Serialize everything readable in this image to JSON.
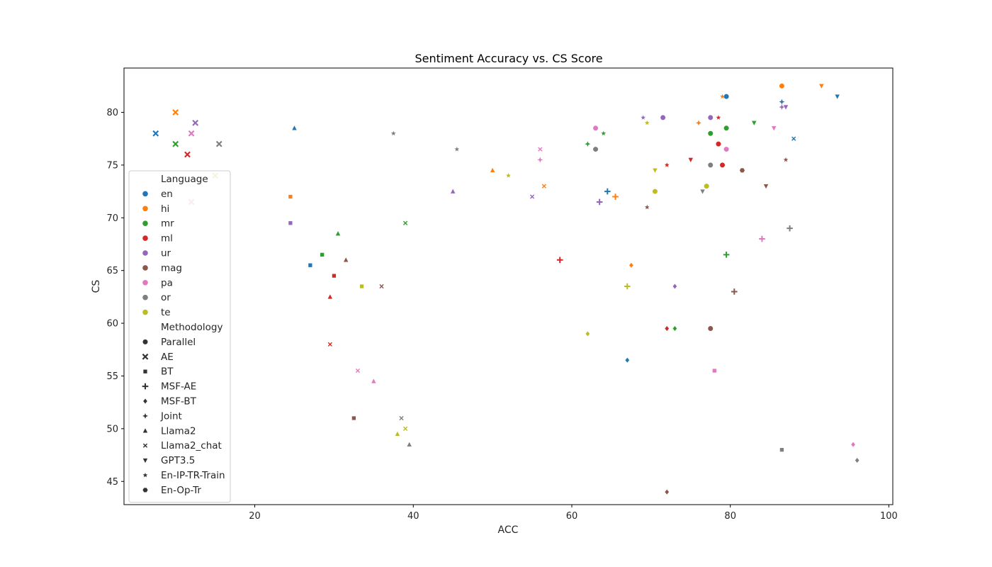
{
  "chart_data": {
    "type": "scatter",
    "title": "Sentiment Accuracy vs. CS Score",
    "xlabel": "ACC",
    "ylabel": "CS",
    "xlim": [
      3.5,
      100.5
    ],
    "ylim": [
      42.8,
      84.2
    ],
    "xticks": [
      20,
      40,
      60,
      80,
      100
    ],
    "yticks": [
      45,
      50,
      55,
      60,
      65,
      70,
      75,
      80
    ],
    "grid": false,
    "legend_placement": "left",
    "legend": {
      "hue_title": "Language",
      "style_title": "Methodology"
    },
    "languages": [
      {
        "name": "en",
        "color": "#1f77b4"
      },
      {
        "name": "hi",
        "color": "#ff7f0e"
      },
      {
        "name": "mr",
        "color": "#2ca02c"
      },
      {
        "name": "ml",
        "color": "#d62728"
      },
      {
        "name": "ur",
        "color": "#9467bd"
      },
      {
        "name": "mag",
        "color": "#8c564b"
      },
      {
        "name": "pa",
        "color": "#e377c2"
      },
      {
        "name": "or",
        "color": "#7f7f7f"
      },
      {
        "name": "te",
        "color": "#bcbd22"
      }
    ],
    "methodologies": [
      {
        "name": "Parallel",
        "marker": "circle"
      },
      {
        "name": "AE",
        "marker": "x"
      },
      {
        "name": "BT",
        "marker": "square"
      },
      {
        "name": "MSF-AE",
        "marker": "plus"
      },
      {
        "name": "MSF-BT",
        "marker": "diamond"
      },
      {
        "name": "Joint",
        "marker": "star4"
      },
      {
        "name": "Llama2",
        "marker": "triangle-up"
      },
      {
        "name": "Llama2_chat",
        "marker": "x-small"
      },
      {
        "name": "GPT3.5",
        "marker": "triangle-down"
      },
      {
        "name": "En-IP-TR-Train",
        "marker": "star"
      },
      {
        "name": "En-Op-Tr",
        "marker": "hexagon"
      }
    ],
    "points": [
      {
        "language": "en",
        "method": "Parallel",
        "x": 79.5,
        "y": 81.5
      },
      {
        "language": "en",
        "method": "AE",
        "x": 7.5,
        "y": 78.0
      },
      {
        "language": "en",
        "method": "BT",
        "x": 27.0,
        "y": 65.5
      },
      {
        "language": "en",
        "method": "MSF-AE",
        "x": 64.5,
        "y": 72.5
      },
      {
        "language": "en",
        "method": "MSF-BT",
        "x": 67.0,
        "y": 56.5
      },
      {
        "language": "en",
        "method": "Joint",
        "x": 86.5,
        "y": 81.0
      },
      {
        "language": "en",
        "method": "Llama2",
        "x": 25.0,
        "y": 78.5
      },
      {
        "language": "en",
        "method": "Llama2_chat",
        "x": 88.0,
        "y": 77.5
      },
      {
        "language": "en",
        "method": "GPT3.5",
        "x": 93.5,
        "y": 81.5
      },
      {
        "language": "hi",
        "method": "Parallel",
        "x": 86.5,
        "y": 82.5
      },
      {
        "language": "hi",
        "method": "AE",
        "x": 10.0,
        "y": 80.0
      },
      {
        "language": "hi",
        "method": "BT",
        "x": 24.5,
        "y": 72.0
      },
      {
        "language": "hi",
        "method": "MSF-AE",
        "x": 65.5,
        "y": 72.0
      },
      {
        "language": "hi",
        "method": "MSF-BT",
        "x": 67.5,
        "y": 65.5
      },
      {
        "language": "hi",
        "method": "Joint",
        "x": 76.0,
        "y": 79.0
      },
      {
        "language": "hi",
        "method": "Llama2",
        "x": 50.0,
        "y": 74.5
      },
      {
        "language": "hi",
        "method": "Llama2_chat",
        "x": 56.5,
        "y": 73.0
      },
      {
        "language": "hi",
        "method": "GPT3.5",
        "x": 91.5,
        "y": 82.5
      },
      {
        "language": "hi",
        "method": "En-IP-TR-Train",
        "x": 79.0,
        "y": 81.5
      },
      {
        "language": "mr",
        "method": "Parallel",
        "x": 79.5,
        "y": 78.5
      },
      {
        "language": "mr",
        "method": "Parallel",
        "x": 77.5,
        "y": 78.0
      },
      {
        "language": "mr",
        "method": "AE",
        "x": 10.0,
        "y": 77.0
      },
      {
        "language": "mr",
        "method": "BT",
        "x": 28.5,
        "y": 66.5
      },
      {
        "language": "mr",
        "method": "MSF-AE",
        "x": 79.5,
        "y": 66.5
      },
      {
        "language": "mr",
        "method": "MSF-BT",
        "x": 73.0,
        "y": 59.5
      },
      {
        "language": "mr",
        "method": "Joint",
        "x": 62.0,
        "y": 77.0
      },
      {
        "language": "mr",
        "method": "Llama2",
        "x": 30.5,
        "y": 68.5
      },
      {
        "language": "mr",
        "method": "Llama2_chat",
        "x": 39.0,
        "y": 69.5
      },
      {
        "language": "mr",
        "method": "GPT3.5",
        "x": 83.0,
        "y": 79.0
      },
      {
        "language": "mr",
        "method": "En-IP-TR-Train",
        "x": 64.0,
        "y": 78.0
      },
      {
        "language": "ml",
        "method": "Parallel",
        "x": 78.5,
        "y": 77.0
      },
      {
        "language": "ml",
        "method": "Parallel",
        "x": 79.0,
        "y": 75.0
      },
      {
        "language": "ml",
        "method": "AE",
        "x": 11.5,
        "y": 76.0
      },
      {
        "language": "ml",
        "method": "BT",
        "x": 30.0,
        "y": 64.5
      },
      {
        "language": "ml",
        "method": "MSF-AE",
        "x": 58.5,
        "y": 66.0
      },
      {
        "language": "ml",
        "method": "MSF-BT",
        "x": 72.0,
        "y": 59.5
      },
      {
        "language": "ml",
        "method": "Llama2",
        "x": 29.5,
        "y": 62.5
      },
      {
        "language": "ml",
        "method": "Llama2_chat",
        "x": 29.5,
        "y": 58.0
      },
      {
        "language": "ml",
        "method": "GPT3.5",
        "x": 75.0,
        "y": 75.5
      },
      {
        "language": "ml",
        "method": "En-IP-TR-Train",
        "x": 78.5,
        "y": 79.5
      },
      {
        "language": "ml",
        "method": "En-IP-TR-Train",
        "x": 72.0,
        "y": 75.0
      },
      {
        "language": "ur",
        "method": "Parallel",
        "x": 71.5,
        "y": 79.5
      },
      {
        "language": "ur",
        "method": "Parallel",
        "x": 77.5,
        "y": 79.5
      },
      {
        "language": "ur",
        "method": "AE",
        "x": 12.5,
        "y": 79.0
      },
      {
        "language": "ur",
        "method": "BT",
        "x": 24.5,
        "y": 69.5
      },
      {
        "language": "ur",
        "method": "MSF-AE",
        "x": 63.5,
        "y": 71.5
      },
      {
        "language": "ur",
        "method": "MSF-BT",
        "x": 73.0,
        "y": 63.5
      },
      {
        "language": "ur",
        "method": "Joint",
        "x": 86.5,
        "y": 80.5
      },
      {
        "language": "ur",
        "method": "Llama2",
        "x": 45.0,
        "y": 72.5
      },
      {
        "language": "ur",
        "method": "Llama2_chat",
        "x": 55.0,
        "y": 72.0
      },
      {
        "language": "ur",
        "method": "GPT3.5",
        "x": 87.0,
        "y": 80.5
      },
      {
        "language": "ur",
        "method": "En-IP-TR-Train",
        "x": 69.0,
        "y": 79.5
      },
      {
        "language": "mag",
        "method": "Parallel",
        "x": 77.5,
        "y": 59.5
      },
      {
        "language": "mag",
        "method": "BT",
        "x": 32.5,
        "y": 51.0
      },
      {
        "language": "mag",
        "method": "MSF-AE",
        "x": 80.5,
        "y": 63.0
      },
      {
        "language": "mag",
        "method": "MSF-BT",
        "x": 72.0,
        "y": 44.0
      },
      {
        "language": "mag",
        "method": "Llama2",
        "x": 31.5,
        "y": 66.0
      },
      {
        "language": "mag",
        "method": "Llama2_chat",
        "x": 36.0,
        "y": 63.5
      },
      {
        "language": "mag",
        "method": "GPT3.5",
        "x": 84.5,
        "y": 73.0
      },
      {
        "language": "mag",
        "method": "En-IP-TR-Train",
        "x": 87.0,
        "y": 75.5
      },
      {
        "language": "mag",
        "method": "En-IP-TR-Train",
        "x": 69.5,
        "y": 71.0
      },
      {
        "language": "mag",
        "method": "En-Op-Tr",
        "x": 81.5,
        "y": 74.5
      },
      {
        "language": "pa",
        "method": "Parallel",
        "x": 63.0,
        "y": 78.5
      },
      {
        "language": "pa",
        "method": "Parallel",
        "x": 79.5,
        "y": 76.5
      },
      {
        "language": "pa",
        "method": "AE",
        "x": 12.0,
        "y": 78.0
      },
      {
        "language": "pa",
        "method": "AE",
        "x": 12.0,
        "y": 71.5
      },
      {
        "language": "pa",
        "method": "BT",
        "x": 78.0,
        "y": 55.5
      },
      {
        "language": "pa",
        "method": "MSF-AE",
        "x": 84.0,
        "y": 68.0
      },
      {
        "language": "pa",
        "method": "MSF-BT",
        "x": 95.5,
        "y": 48.5
      },
      {
        "language": "pa",
        "method": "Joint",
        "x": 56.0,
        "y": 75.5
      },
      {
        "language": "pa",
        "method": "Llama2",
        "x": 35.0,
        "y": 54.5
      },
      {
        "language": "pa",
        "method": "Llama2_chat",
        "x": 33.0,
        "y": 55.5
      },
      {
        "language": "pa",
        "method": "Llama2_chat",
        "x": 56.0,
        "y": 76.5
      },
      {
        "language": "pa",
        "method": "GPT3.5",
        "x": 85.5,
        "y": 78.5
      },
      {
        "language": "or",
        "method": "Parallel",
        "x": 63.0,
        "y": 76.5
      },
      {
        "language": "or",
        "method": "Parallel",
        "x": 77.5,
        "y": 75.0
      },
      {
        "language": "or",
        "method": "AE",
        "x": 15.5,
        "y": 77.0
      },
      {
        "language": "or",
        "method": "BT",
        "x": 86.5,
        "y": 48.0
      },
      {
        "language": "or",
        "method": "MSF-AE",
        "x": 87.5,
        "y": 69.0
      },
      {
        "language": "or",
        "method": "MSF-BT",
        "x": 96.0,
        "y": 47.0
      },
      {
        "language": "or",
        "method": "Llama2",
        "x": 39.5,
        "y": 48.5
      },
      {
        "language": "or",
        "method": "Llama2_chat",
        "x": 38.5,
        "y": 51.0
      },
      {
        "language": "or",
        "method": "GPT3.5",
        "x": 76.5,
        "y": 72.5
      },
      {
        "language": "or",
        "method": "En-IP-TR-Train",
        "x": 37.5,
        "y": 78.0
      },
      {
        "language": "or",
        "method": "En-IP-TR-Train",
        "x": 45.5,
        "y": 76.5
      },
      {
        "language": "te",
        "method": "Parallel",
        "x": 70.5,
        "y": 72.5
      },
      {
        "language": "te",
        "method": "Parallel",
        "x": 77.0,
        "y": 73.0
      },
      {
        "language": "te",
        "method": "AE",
        "x": 15.0,
        "y": 74.0
      },
      {
        "language": "te",
        "method": "BT",
        "x": 33.5,
        "y": 63.5
      },
      {
        "language": "te",
        "method": "MSF-AE",
        "x": 67.0,
        "y": 63.5
      },
      {
        "language": "te",
        "method": "MSF-BT",
        "x": 62.0,
        "y": 59.0
      },
      {
        "language": "te",
        "method": "Llama2",
        "x": 38.0,
        "y": 49.5
      },
      {
        "language": "te",
        "method": "Llama2_chat",
        "x": 39.0,
        "y": 50.0
      },
      {
        "language": "te",
        "method": "GPT3.5",
        "x": 70.5,
        "y": 74.5
      },
      {
        "language": "te",
        "method": "En-IP-TR-Train",
        "x": 52.0,
        "y": 74.0
      },
      {
        "language": "te",
        "method": "En-IP-TR-Train",
        "x": 69.5,
        "y": 79.0
      }
    ]
  }
}
